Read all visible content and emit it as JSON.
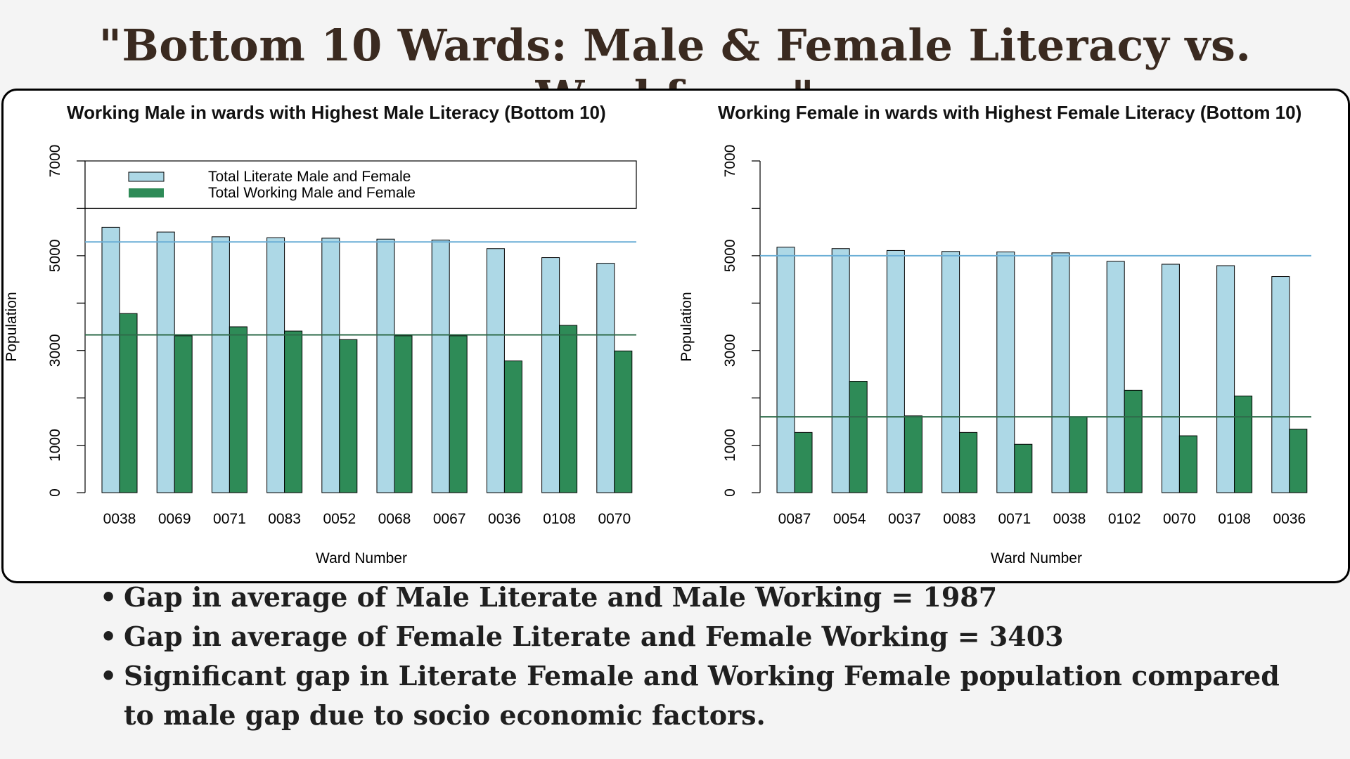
{
  "page": {
    "title": "\"Bottom 10 Wards: Male & Female Literacy vs. Workforce\""
  },
  "bullets": [
    "Gap in average of Male Literate and Male Working = 1987",
    "Gap in average of Female Literate and Female Working = 3403",
    "Significant gap in Literate Female and Working Female population compared to male gap due to socio economic factors."
  ],
  "colors": {
    "literate": "#add8e6",
    "working": "#2e8b57",
    "literate_line": "#6aaed6",
    "working_line": "#2e6b4a"
  },
  "chart_data": [
    {
      "type": "bar",
      "title": "Working Male in wards with Highest Male Literacy (Bottom 10)",
      "xlabel": "Ward Number",
      "ylabel": "Population",
      "ylim": [
        0,
        7000
      ],
      "yticks": [
        "0",
        "1000",
        "3000",
        "5000",
        "7000"
      ],
      "grid": false,
      "legend_position": "top-left",
      "categories": [
        "0038",
        "0069",
        "0071",
        "0083",
        "0052",
        "0068",
        "0067",
        "0036",
        "0108",
        "0070"
      ],
      "series": [
        {
          "name": "Total Literate Male and Female",
          "values": [
            5600,
            5500,
            5400,
            5380,
            5370,
            5350,
            5330,
            5150,
            4960,
            4840
          ]
        },
        {
          "name": "Total Working Male and Female",
          "values": [
            3780,
            3310,
            3500,
            3410,
            3230,
            3310,
            3310,
            2780,
            3530,
            2990
          ]
        }
      ],
      "reference_lines": [
        {
          "series": "Total Literate Male and Female",
          "value": 5290
        },
        {
          "series": "Total Working Male and Female",
          "value": 3330
        }
      ]
    },
    {
      "type": "bar",
      "title": "Working Female in wards with Highest Female Literacy (Bottom 10)",
      "xlabel": "Ward Number",
      "ylabel": "Population",
      "ylim": [
        0,
        7000
      ],
      "yticks": [
        "0",
        "1000",
        "3000",
        "5000",
        "7000"
      ],
      "grid": false,
      "categories": [
        "0087",
        "0054",
        "0037",
        "0083",
        "0071",
        "0038",
        "0102",
        "0070",
        "0108",
        "0036"
      ],
      "series": [
        {
          "name": "Total Literate Male and Female",
          "values": [
            5180,
            5150,
            5110,
            5090,
            5080,
            5060,
            4880,
            4820,
            4790,
            4560
          ]
        },
        {
          "name": "Total Working Male and Female",
          "values": [
            1270,
            2350,
            1620,
            1270,
            1020,
            1600,
            2160,
            1200,
            2040,
            1340
          ]
        }
      ],
      "reference_lines": [
        {
          "series": "Total Literate Male and Female",
          "value": 5000
        },
        {
          "series": "Total Working Male and Female",
          "value": 1600
        }
      ]
    }
  ]
}
